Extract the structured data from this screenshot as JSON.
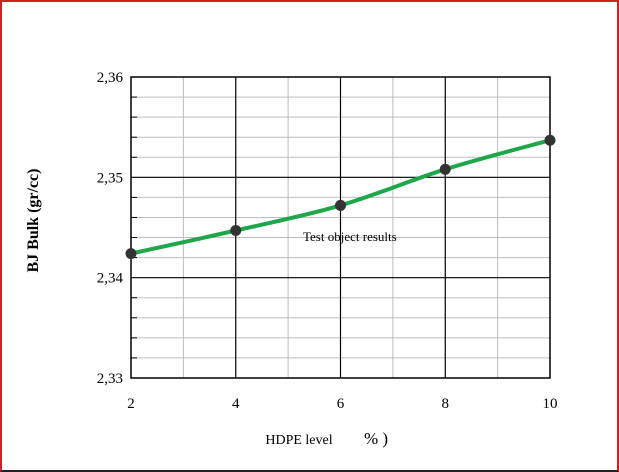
{
  "chart_data": {
    "type": "line",
    "ylabel": "BJ Bulk (gr/cc)",
    "xlabel": "HDPE level",
    "xlabel_suffix": "% )",
    "annotation": "Test object results",
    "x": [
      2,
      4,
      6,
      8,
      10
    ],
    "series": [
      {
        "values": [
          2.3424,
          2.3447,
          2.3472,
          2.3508,
          2.3537
        ],
        "color": "#1fa64a",
        "marker_color": "#333333"
      }
    ],
    "xlim": [
      2,
      10
    ],
    "ylim": [
      2.33,
      2.36
    ],
    "xticks": [
      2,
      4,
      6,
      8,
      10
    ],
    "xtick_labels": [
      "2",
      "4",
      "6",
      "8",
      "10"
    ],
    "yticks": [
      2.33,
      2.34,
      2.35,
      2.36
    ],
    "ytick_labels": [
      "2,33",
      "2,34",
      "2,35",
      "2,36"
    ],
    "grid": true
  }
}
